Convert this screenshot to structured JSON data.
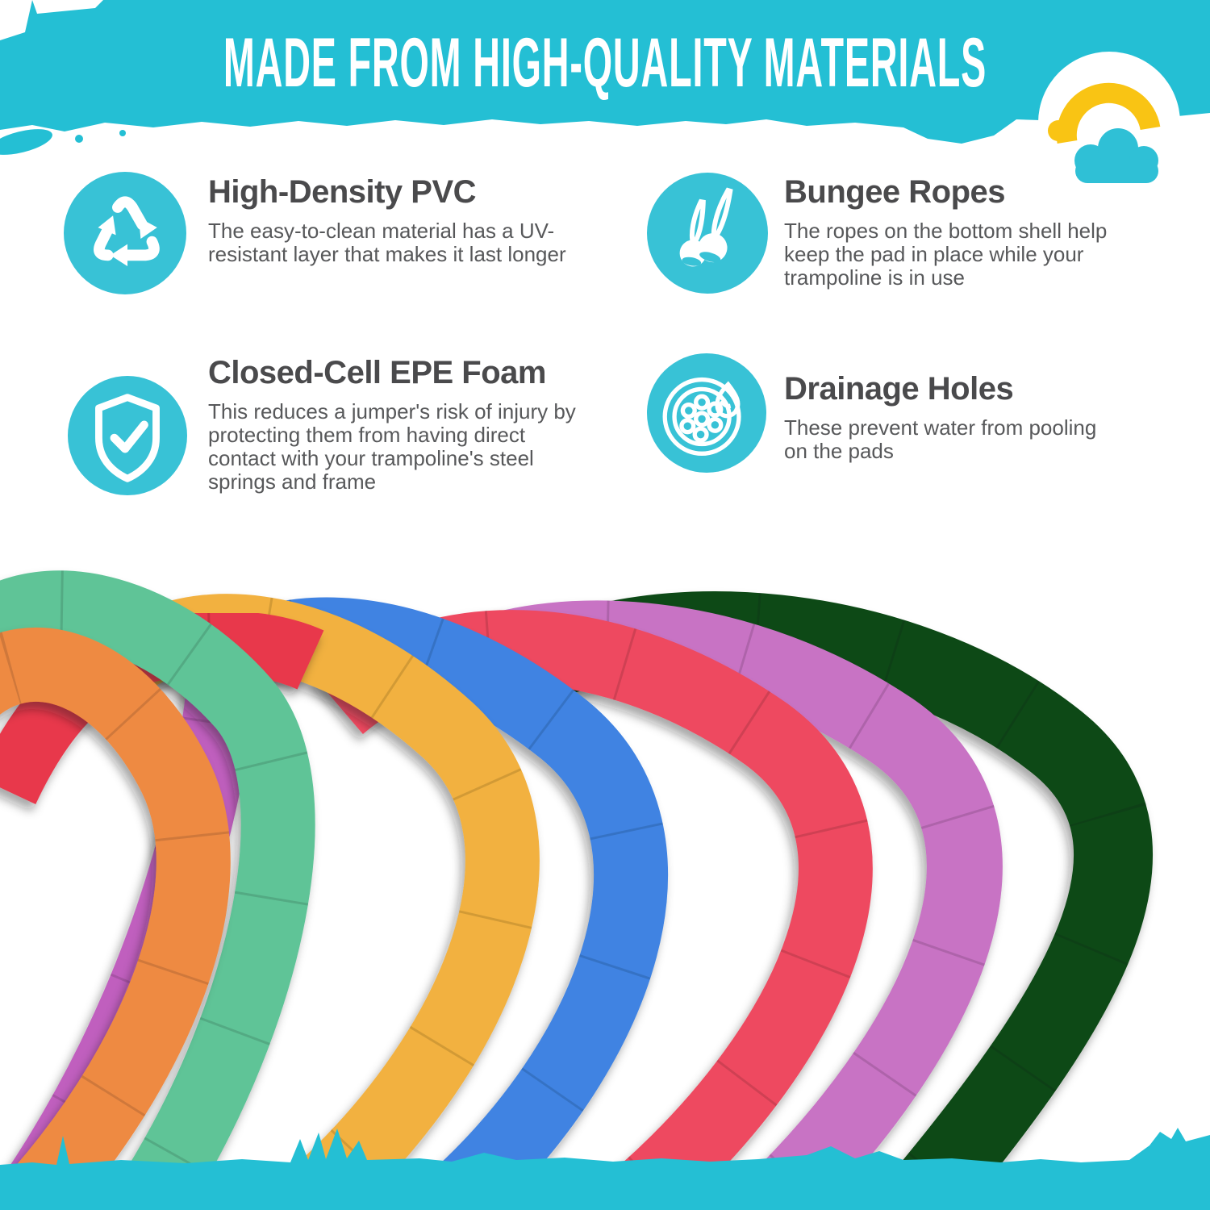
{
  "header": {
    "title": "MADE FROM HIGH-QUALITY MATERIALS",
    "band_color": "#24bfd4",
    "text_color": "#ffffff"
  },
  "logo": {
    "circle_color": "#ffffff",
    "rainbow_color": "#f9c414",
    "cloud_color": "#2fc0d6"
  },
  "feature_style": {
    "icon_bg": "#38c2d6",
    "icon_fg": "#ffffff",
    "title_color": "#4a4a4c",
    "body_color": "#57585a"
  },
  "features": [
    {
      "icon": "recycle-icon",
      "title": "High-Density PVC",
      "description": "The easy-to-clean material has a UV-resistant layer that makes it last longer"
    },
    {
      "icon": "bungee-ropes-icon",
      "title": "Bungee Ropes",
      "description": "The ropes on the bottom shell help keep the pad in place while your trampoline is in use"
    },
    {
      "icon": "shield-check-icon",
      "title": "Closed-Cell EPE Foam",
      "description": "This reduces a jumper's risk of injury by protecting them from having direct contact with your trampoline's steel springs and frame"
    },
    {
      "icon": "drainage-holes-icon",
      "title": "Drainage Holes",
      "description": "These prevent water from pooling on the pads"
    }
  ],
  "pads": {
    "items": [
      {
        "name": "dark-green",
        "color": "#0d4a16"
      },
      {
        "name": "orchid",
        "color": "#c873c4"
      },
      {
        "name": "crimson",
        "color": "#ee4a60"
      },
      {
        "name": "blue",
        "color": "#3f83e2"
      },
      {
        "name": "purple",
        "color": "#c05fbe"
      },
      {
        "name": "yellow",
        "color": "#f2b13f"
      },
      {
        "name": "red",
        "color": "#e8374b"
      },
      {
        "name": "seafoam",
        "color": "#5fc497"
      },
      {
        "name": "orange",
        "color": "#ee8a43"
      }
    ]
  },
  "footer": {
    "band_color": "#24bfd4"
  }
}
